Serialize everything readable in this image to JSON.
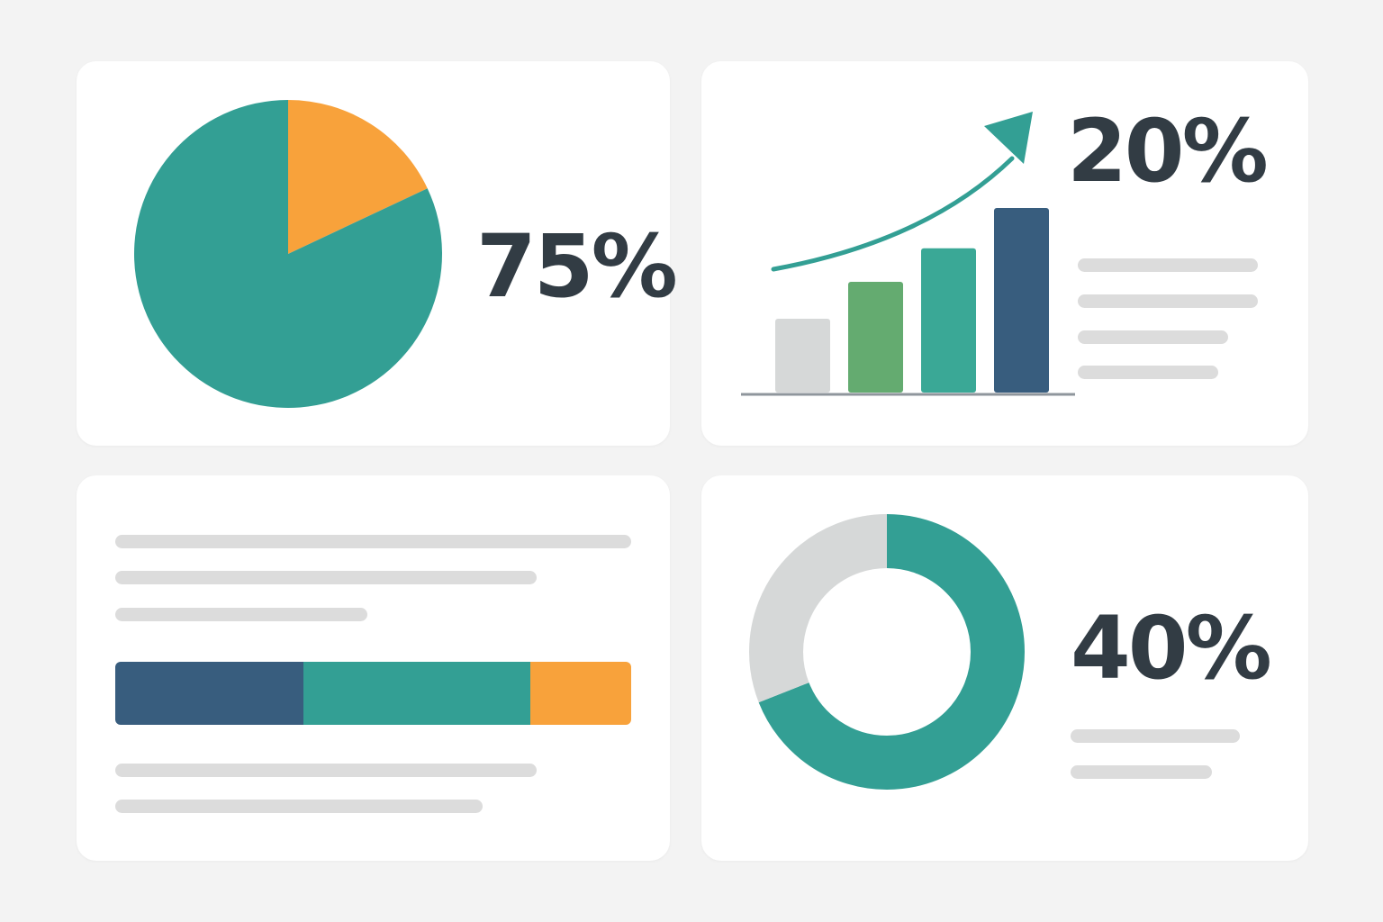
{
  "colors": {
    "teal": "#339f94",
    "orange": "#f8a23b",
    "navy": "#385d7e",
    "green": "#64ab70",
    "teal_light": "#3aa896",
    "gray": "#d6d8d8",
    "text_dark": "#323c44",
    "placeholder": "#dcdcdc"
  },
  "pie_card": {
    "value_label": "75%",
    "chart_data": {
      "type": "pie",
      "title": "",
      "slices": [
        {
          "value": 0.82,
          "color": "#339f94"
        },
        {
          "value": 0.18,
          "color": "#f8a23b"
        }
      ]
    }
  },
  "bar_card": {
    "value_label": "20%",
    "trend_arrow": "upward-trend-arrow",
    "chart_data": {
      "type": "bar",
      "title": "",
      "categories": [
        "",
        "",
        "",
        ""
      ],
      "values": [
        2.2,
        3.3,
        4.3,
        5.5
      ],
      "colors": [
        "#d6d8d8",
        "#64ab70",
        "#3aa896",
        "#385d7e"
      ],
      "ylim": [
        0,
        5.5
      ],
      "grid": false
    }
  },
  "stacked_card": {
    "chart_data": {
      "type": "bar",
      "title": "",
      "orientation": "horizontal-stacked",
      "segments": [
        {
          "value": 0.365,
          "color": "#385d7e"
        },
        {
          "value": 0.44,
          "color": "#339f94"
        },
        {
          "value": 0.195,
          "color": "#f8a23b"
        }
      ]
    }
  },
  "donut_card": {
    "value_label": "40%",
    "chart_data": {
      "type": "pie",
      "title": "",
      "donut": true,
      "slices": [
        {
          "value": 0.69,
          "color": "#339f94"
        },
        {
          "value": 0.31,
          "color": "#d6d8d8"
        }
      ]
    }
  }
}
